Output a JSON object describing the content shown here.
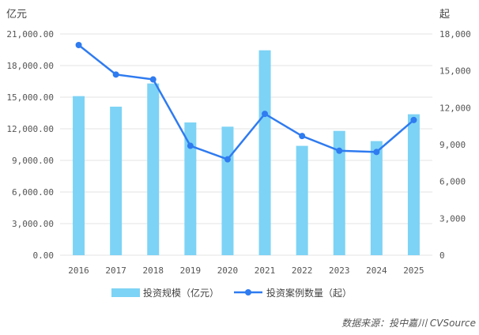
{
  "chart_data": {
    "type": "bar+line",
    "categories": [
      "2016",
      "2017",
      "2018",
      "2019",
      "2020",
      "2021",
      "2022",
      "2023",
      "2024",
      "2025"
    ],
    "series": [
      {
        "name": "投资规模（亿元）",
        "type": "bar",
        "axis": "left",
        "color": "#7dd3f5",
        "values": [
          15100,
          14100,
          16300,
          12600,
          12200,
          19450,
          10380,
          11800,
          10830,
          13380
        ]
      },
      {
        "name": "投资案例数量（起）",
        "type": "line",
        "axis": "right",
        "color": "#2f7bf0",
        "values": [
          17100,
          14700,
          14300,
          8900,
          7800,
          11500,
          9700,
          8500,
          8400,
          11000
        ]
      }
    ],
    "left_axis": {
      "unit": "亿元",
      "ylim": [
        0,
        21000
      ],
      "ticks": [
        "0.00",
        "3,000.00",
        "6,000.00",
        "9,000.00",
        "12,000.00",
        "15,000.00",
        "18,000.00",
        "21,000.00"
      ]
    },
    "right_axis": {
      "unit": "起",
      "ylim": [
        0,
        18000
      ],
      "ticks": [
        "0",
        "3,000",
        "6,000",
        "9,000",
        "12,000",
        "15,000",
        "18,000"
      ]
    },
    "grid": true,
    "legend": "bottom",
    "source": "数据来源：投中嘉川 CVSource"
  }
}
